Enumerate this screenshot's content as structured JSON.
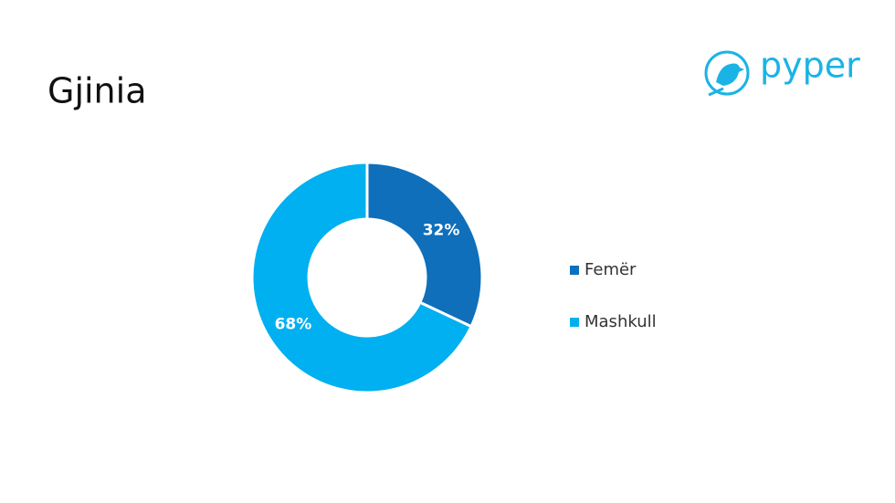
{
  "logo": "pyper",
  "chart_data": {
    "type": "pie",
    "donut": true,
    "title": "Gjinia",
    "categories": [
      "Femër",
      "Mashkull"
    ],
    "values": [
      32,
      68
    ],
    "value_labels": [
      "32%",
      "68%"
    ],
    "colors": [
      "#0f6fba",
      "#00b0f0"
    ],
    "legend": "right"
  }
}
